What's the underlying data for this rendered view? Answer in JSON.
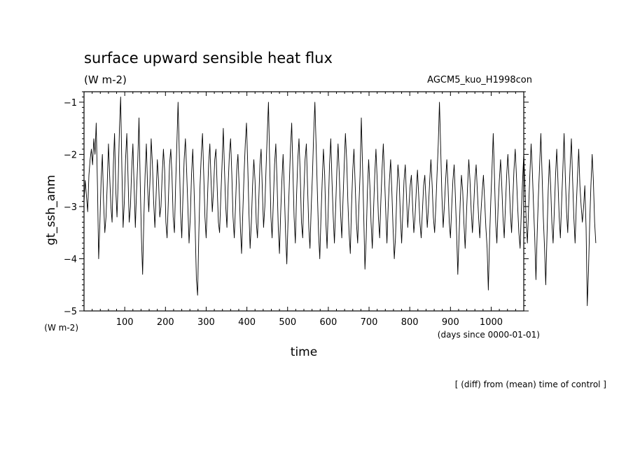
{
  "chart_data": {
    "type": "line",
    "title": "surface upward sensible heat flux",
    "title_units": "(W m-2)",
    "experiment": "AGCM5_kuo_H1998con",
    "ylabel": "gt_ssh_anm",
    "y_units": "(W m-2)",
    "xlabel": "time",
    "x_units": "(days since 0000-01-01)",
    "note": "[ (diff) from (mean) time of control ]",
    "xlim": [
      0,
      1080
    ],
    "ylim": [
      -5,
      -0.8
    ],
    "x_ticks": [
      100,
      200,
      300,
      400,
      500,
      600,
      700,
      800,
      900,
      1000
    ],
    "y_ticks": [
      -5,
      -4,
      -3,
      -2,
      -1
    ],
    "series": [
      {
        "color": "#000000",
        "x_start": 0,
        "x_step": 3,
        "values": [
          -2.9,
          -2.5,
          -2.8,
          -3.1,
          -2.4,
          -2.1,
          -1.9,
          -2.2,
          -1.7,
          -2.0,
          -1.4,
          -2.6,
          -4.0,
          -3.3,
          -2.5,
          -2.0,
          -2.9,
          -3.5,
          -3.2,
          -2.6,
          -1.8,
          -2.4,
          -3.0,
          -3.3,
          -2.2,
          -1.6,
          -2.7,
          -3.2,
          -2.5,
          -1.5,
          -0.9,
          -2.3,
          -3.4,
          -2.9,
          -2.1,
          -1.6,
          -2.4,
          -3.3,
          -3.0,
          -2.3,
          -1.8,
          -2.6,
          -3.4,
          -2.7,
          -2.1,
          -1.3,
          -2.5,
          -3.6,
          -4.3,
          -3.2,
          -2.4,
          -1.8,
          -2.6,
          -3.1,
          -2.5,
          -1.7,
          -2.2,
          -2.9,
          -3.4,
          -2.8,
          -2.1,
          -2.5,
          -3.2,
          -3.0,
          -2.4,
          -1.9,
          -2.3,
          -3.3,
          -3.6,
          -2.9,
          -2.2,
          -1.9,
          -2.4,
          -3.2,
          -3.5,
          -2.6,
          -1.8,
          -1.0,
          -2.0,
          -3.1,
          -3.6,
          -2.8,
          -2.1,
          -1.7,
          -2.3,
          -3.0,
          -3.7,
          -3.2,
          -2.4,
          -1.9,
          -2.6,
          -3.4,
          -4.4,
          -4.7,
          -3.5,
          -2.6,
          -2.0,
          -1.6,
          -2.4,
          -3.2,
          -3.6,
          -2.9,
          -2.2,
          -1.8,
          -2.5,
          -3.1,
          -2.7,
          -2.1,
          -1.9,
          -2.6,
          -3.3,
          -3.5,
          -2.8,
          -2.2,
          -1.5,
          -2.3,
          -3.0,
          -3.4,
          -2.6,
          -2.0,
          -1.7,
          -2.4,
          -3.2,
          -3.6,
          -3.0,
          -2.3,
          -2.0,
          -2.6,
          -3.4,
          -3.9,
          -3.1,
          -2.4,
          -1.8,
          -1.4,
          -2.2,
          -3.1,
          -3.8,
          -3.3,
          -2.6,
          -2.1,
          -2.5,
          -3.3,
          -3.6,
          -2.9,
          -2.2,
          -1.9,
          -2.7,
          -3.4,
          -3.0,
          -2.3,
          -1.6,
          -1.0,
          -2.2,
          -3.2,
          -3.6,
          -2.9,
          -2.2,
          -1.8,
          -2.5,
          -3.4,
          -3.9,
          -3.1,
          -2.5,
          -2.0,
          -2.7,
          -3.5,
          -4.1,
          -3.3,
          -2.6,
          -1.9,
          -1.4,
          -2.3,
          -3.2,
          -3.7,
          -2.8,
          -2.1,
          -1.7,
          -2.4,
          -3.3,
          -3.6,
          -2.7,
          -2.1,
          -1.8,
          -2.6,
          -3.4,
          -3.8,
          -3.0,
          -2.4,
          -1.6,
          -1.0,
          -1.8,
          -2.7,
          -3.5,
          -4.0,
          -3.2,
          -2.5,
          -1.9,
          -2.4,
          -3.3,
          -3.8,
          -3.0,
          -2.2,
          -1.7,
          -2.5,
          -3.2,
          -3.7,
          -3.0,
          -2.3,
          -1.8,
          -2.4,
          -3.1,
          -3.6,
          -2.9,
          -2.2,
          -1.6,
          -2.1,
          -2.9,
          -3.5,
          -3.9,
          -3.0,
          -2.3,
          -1.9,
          -2.6,
          -3.3,
          -3.7,
          -3.0,
          -2.4,
          -1.3,
          -2.2,
          -3.2,
          -4.2,
          -3.6,
          -2.7,
          -2.1,
          -2.6,
          -3.3,
          -3.8,
          -3.1,
          -2.4,
          -1.9,
          -2.5,
          -3.2,
          -3.6,
          -2.9,
          -2.3,
          -1.8,
          -2.4,
          -3.1,
          -3.7,
          -3.0,
          -2.5,
          -2.1,
          -2.7,
          -3.4,
          -4.0,
          -3.6,
          -2.8,
          -2.2,
          -2.5,
          -3.2,
          -3.7,
          -3.1,
          -2.5,
          -2.2,
          -2.8,
          -3.4,
          -3.0,
          -2.6,
          -2.4,
          -3.0,
          -3.5,
          -3.2,
          -2.7,
          -2.3,
          -2.8,
          -3.3,
          -3.6,
          -3.1,
          -2.6,
          -2.4,
          -2.9,
          -3.4,
          -3.0,
          -2.5,
          -2.1,
          -2.6,
          -3.2,
          -3.5,
          -3.0,
          -2.4,
          -1.8,
          -1.0,
          -1.9,
          -2.8,
          -3.4,
          -3.0,
          -2.5,
          -2.1,
          -2.6,
          -3.3,
          -3.6,
          -3.0,
          -2.5,
          -2.2,
          -2.8,
          -3.5,
          -4.3,
          -3.6,
          -2.9,
          -2.4,
          -2.7,
          -3.3,
          -3.8,
          -3.2,
          -2.6,
          -2.1,
          -2.5,
          -3.1,
          -3.5,
          -3.0,
          -2.5,
          -2.2,
          -2.7,
          -3.2,
          -3.6,
          -3.1,
          -2.7,
          -2.4,
          -2.9,
          -3.4,
          -3.8,
          -4.6,
          -3.6,
          -2.9,
          -2.3,
          -1.6,
          -2.4,
          -3.3,
          -3.7,
          -3.0,
          -2.5,
          -2.1,
          -2.6,
          -3.2,
          -3.6,
          -3.0,
          -2.4,
          -2.0,
          -2.5,
          -3.1,
          -3.5,
          -2.9,
          -2.3,
          -1.9,
          -2.4,
          -3.0,
          -3.5,
          -3.8,
          -3.1,
          -2.5,
          -2.0,
          -2.6,
          -3.3,
          -3.7,
          -3.0,
          -2.4,
          -1.8,
          -2.3,
          -3.0,
          -3.6,
          -4.4,
          -3.5,
          -2.8,
          -2.2,
          -1.6,
          -2.4,
          -3.2,
          -3.8,
          -4.5,
          -3.6,
          -2.7,
          -2.1,
          -2.6,
          -3.3,
          -3.7,
          -3.1,
          -2.4,
          -1.9,
          -2.5,
          -3.2,
          -3.6,
          -2.9,
          -2.3,
          -1.6,
          -2.4,
          -3.1,
          -3.5,
          -2.8,
          -2.2,
          -1.7,
          -2.5,
          -3.2,
          -3.7,
          -3.0,
          -2.4,
          -1.9,
          -2.6,
          -3.0,
          -3.3,
          -3.0,
          -2.6,
          -3.4,
          -4.9,
          -4.2,
          -3.3,
          -2.6,
          -2.0,
          -2.5,
          -3.3,
          -3.7
        ]
      }
    ]
  }
}
